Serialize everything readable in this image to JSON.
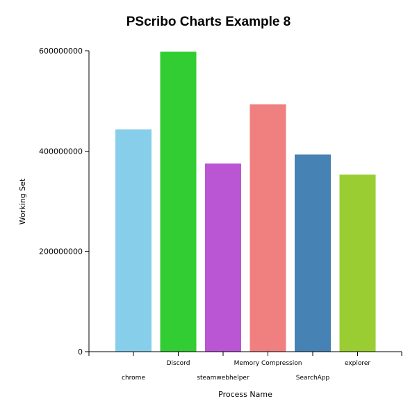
{
  "chart_data": {
    "type": "bar",
    "title": "PScribo Charts Example 8",
    "xlabel": "Process Name",
    "ylabel": "Working Set",
    "categories": [
      "chrome",
      "Discord",
      "steamwebhelper",
      "Memory Compression",
      "SearchApp",
      "explorer"
    ],
    "values": [
      443000000,
      598000000,
      375000000,
      493000000,
      393000000,
      353000000
    ],
    "colors": [
      "#87CEEB",
      "#32CD32",
      "#BA55D3",
      "#F08080",
      "#4682B4",
      "#9ACD32"
    ],
    "ylim": [
      0,
      600000000
    ],
    "yticks": [
      "0",
      "200000000",
      "400000000",
      "600000000"
    ],
    "ytick_values": [
      0,
      200000000,
      400000000,
      600000000
    ],
    "grid": false,
    "legend": "none"
  }
}
